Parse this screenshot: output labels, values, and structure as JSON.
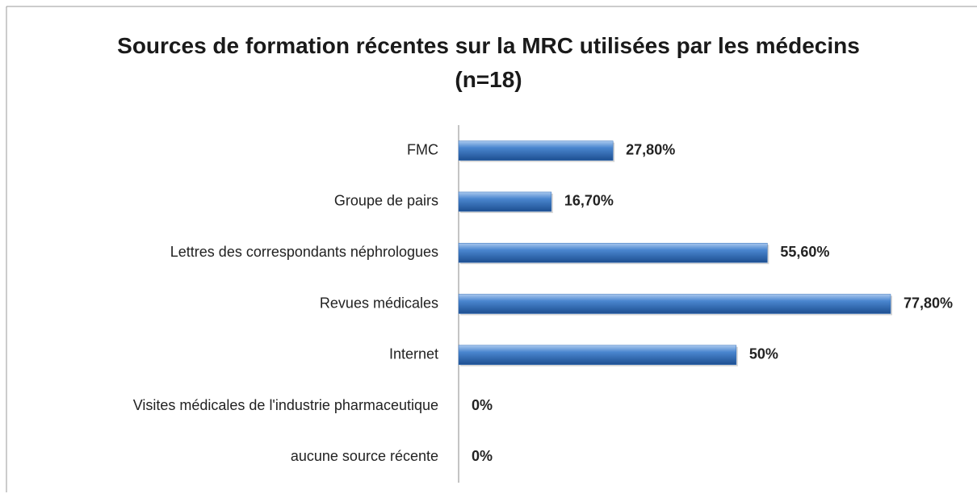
{
  "chart_data": {
    "type": "bar",
    "orientation": "horizontal",
    "title": "Sources de formation récentes sur la MRC utilisées par les médecins (n=18)",
    "categories": [
      "FMC",
      "Groupe de pairs",
      "Lettres des correspondants néphrologues",
      "Revues médicales",
      "Internet",
      "Visites médicales de l'industrie pharmaceutique",
      "aucune source récente"
    ],
    "values": [
      27.8,
      16.7,
      55.6,
      77.8,
      50,
      0,
      0
    ],
    "value_labels": [
      "27,80%",
      "16,70%",
      "55,60%",
      "77,80%",
      "50%",
      "0%",
      "0%"
    ],
    "color": "#2e6bb8"
  }
}
